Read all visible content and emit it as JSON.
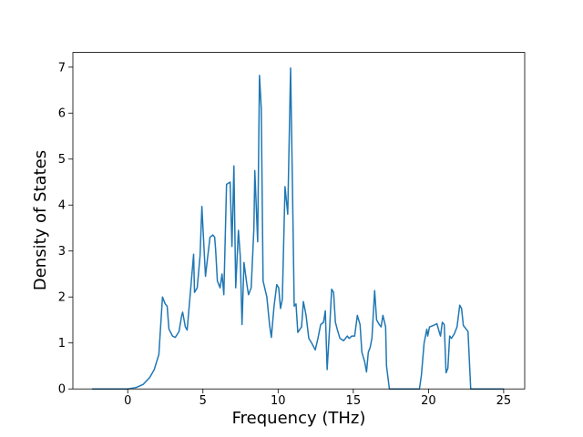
{
  "chart_data": {
    "type": "line",
    "x_label": "Frequency (THz)",
    "y_label": "Density of States",
    "color": "#1f77b4",
    "xlim": [
      -3.65,
      26.4
    ],
    "ylim": [
      0,
      7.32
    ],
    "xticks": [
      0,
      5,
      10,
      15,
      20,
      25
    ],
    "yticks": [
      0,
      1,
      2,
      3,
      4,
      5,
      6,
      7
    ],
    "x": [
      -2.37,
      0,
      0.55,
      1.03,
      1.46,
      1.76,
      2.07,
      2.31,
      2.49,
      2.62,
      2.74,
      2.98,
      3.16,
      3.41,
      3.59,
      3.65,
      3.83,
      3.95,
      4.14,
      4.38,
      4.44,
      4.62,
      4.81,
      4.93,
      5.05,
      5.17,
      5.29,
      5.47,
      5.66,
      5.78,
      5.84,
      5.96,
      6.14,
      6.27,
      6.39,
      6.57,
      6.81,
      6.93,
      7.06,
      7.18,
      7.36,
      7.48,
      7.6,
      7.73,
      7.91,
      8.03,
      8.21,
      8.39,
      8.45,
      8.64,
      8.76,
      8.88,
      9.0,
      9.25,
      9.43,
      9.55,
      9.73,
      9.91,
      10.04,
      10.16,
      10.28,
      10.46,
      10.64,
      10.83,
      10.95,
      11.07,
      11.19,
      11.31,
      11.56,
      11.68,
      11.86,
      12.04,
      12.23,
      12.47,
      12.65,
      12.83,
      13.02,
      13.14,
      13.26,
      13.44,
      13.56,
      13.69,
      13.81,
      13.93,
      14.11,
      14.36,
      14.6,
      14.72,
      14.9,
      15.09,
      15.27,
      15.45,
      15.57,
      15.75,
      15.88,
      16.0,
      16.12,
      16.24,
      16.42,
      16.55,
      16.73,
      16.85,
      16.97,
      17.15,
      17.21,
      17.4,
      19.4,
      19.53,
      19.71,
      19.89,
      19.95,
      20.07,
      20.32,
      20.56,
      20.68,
      20.8,
      20.92,
      21.05,
      21.17,
      21.29,
      21.41,
      21.53,
      21.72,
      21.9,
      22.08,
      22.2,
      22.32,
      22.51,
      22.63,
      22.81,
      25.0
    ],
    "values": [
      0,
      0,
      0.03,
      0.1,
      0.25,
      0.42,
      0.75,
      2.0,
      1.85,
      1.8,
      1.3,
      1.15,
      1.12,
      1.25,
      1.6,
      1.67,
      1.35,
      1.28,
      2.0,
      2.93,
      2.1,
      2.2,
      2.9,
      3.97,
      3.2,
      2.45,
      2.8,
      3.3,
      3.35,
      3.3,
      3.05,
      2.35,
      2.2,
      2.5,
      2.05,
      4.45,
      4.5,
      3.1,
      4.85,
      2.2,
      3.45,
      2.9,
      1.4,
      2.75,
      2.3,
      2.05,
      2.2,
      3.5,
      4.75,
      3.2,
      6.82,
      6.1,
      2.35,
      2.0,
      1.4,
      1.12,
      1.8,
      2.27,
      2.2,
      1.75,
      1.95,
      4.4,
      3.8,
      6.98,
      4.5,
      1.8,
      1.85,
      1.23,
      1.35,
      1.9,
      1.6,
      1.1,
      1.0,
      0.85,
      1.1,
      1.4,
      1.45,
      1.7,
      0.42,
      1.4,
      2.17,
      2.1,
      1.45,
      1.3,
      1.1,
      1.05,
      1.15,
      1.1,
      1.15,
      1.15,
      1.6,
      1.4,
      0.8,
      0.6,
      0.37,
      0.8,
      0.9,
      1.1,
      2.14,
      1.5,
      1.4,
      1.35,
      1.6,
      1.35,
      0.5,
      0,
      0,
      0.3,
      1.0,
      1.3,
      1.15,
      1.35,
      1.38,
      1.42,
      1.28,
      1.15,
      1.45,
      1.4,
      0.35,
      0.45,
      1.15,
      1.1,
      1.2,
      1.35,
      1.82,
      1.75,
      1.38,
      1.3,
      1.25,
      0,
      0
    ]
  }
}
